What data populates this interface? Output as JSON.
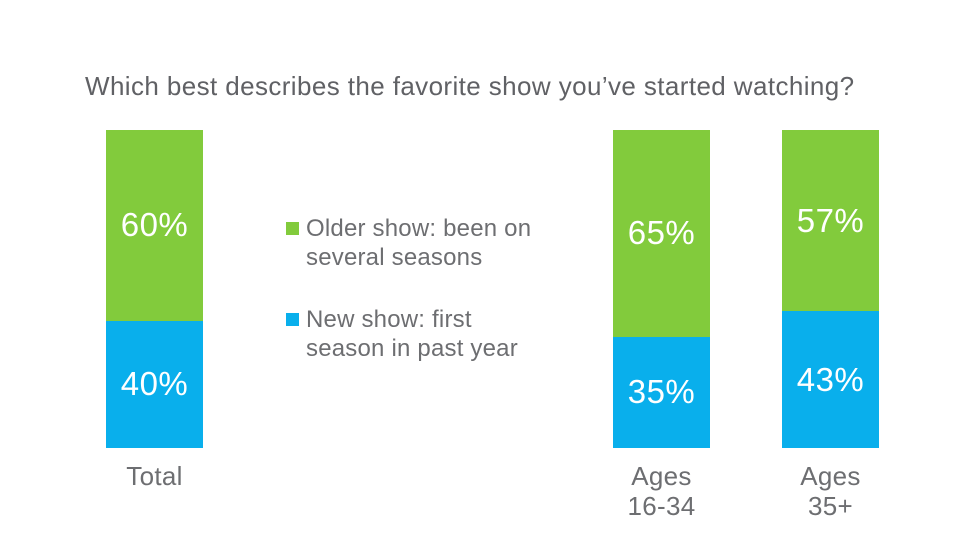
{
  "title": "Which best describes the favorite show you’ve started watching?",
  "colors": {
    "older_show_green": "#82cb3c",
    "new_show_blue": "#09afec",
    "text_grey": "#6d6e71",
    "value_label_white": "#ffffff",
    "background": "#ffffff"
  },
  "legend": {
    "items": [
      {
        "key": "older-show",
        "label": "Older show: been on several seasons",
        "lines": [
          "Older show: been on",
          "several seasons"
        ],
        "color": "#82cb3c"
      },
      {
        "key": "new-show",
        "label": "New show: first season in past year",
        "lines": [
          "New show: first",
          "season in past year"
        ],
        "color": "#09afec"
      }
    ]
  },
  "chart_data": {
    "type": "bar",
    "subtype": "stacked-100-percent-column",
    "title": "Which best describes the favorite show you’ve started watching?",
    "unit": "%",
    "axes": "none",
    "grid": false,
    "legend_position": "left-middle",
    "categories": [
      "Total",
      "Ages 16-34",
      "Ages 35+"
    ],
    "category_lines": [
      [
        "Total"
      ],
      [
        "Ages",
        "16-34"
      ],
      [
        "Ages",
        "35+"
      ]
    ],
    "series": [
      {
        "name": "Older show: been on several seasons",
        "key": "older-show",
        "color": "#82cb3c",
        "position": "top",
        "values": [
          60,
          65,
          57
        ],
        "labels": [
          "60%",
          "65%",
          "57%"
        ]
      },
      {
        "name": "New show: first season in past year",
        "key": "new-show",
        "color": "#09afec",
        "position": "bottom",
        "values": [
          40,
          35,
          43
        ],
        "labels": [
          "40%",
          "35%",
          "43%"
        ]
      }
    ]
  }
}
